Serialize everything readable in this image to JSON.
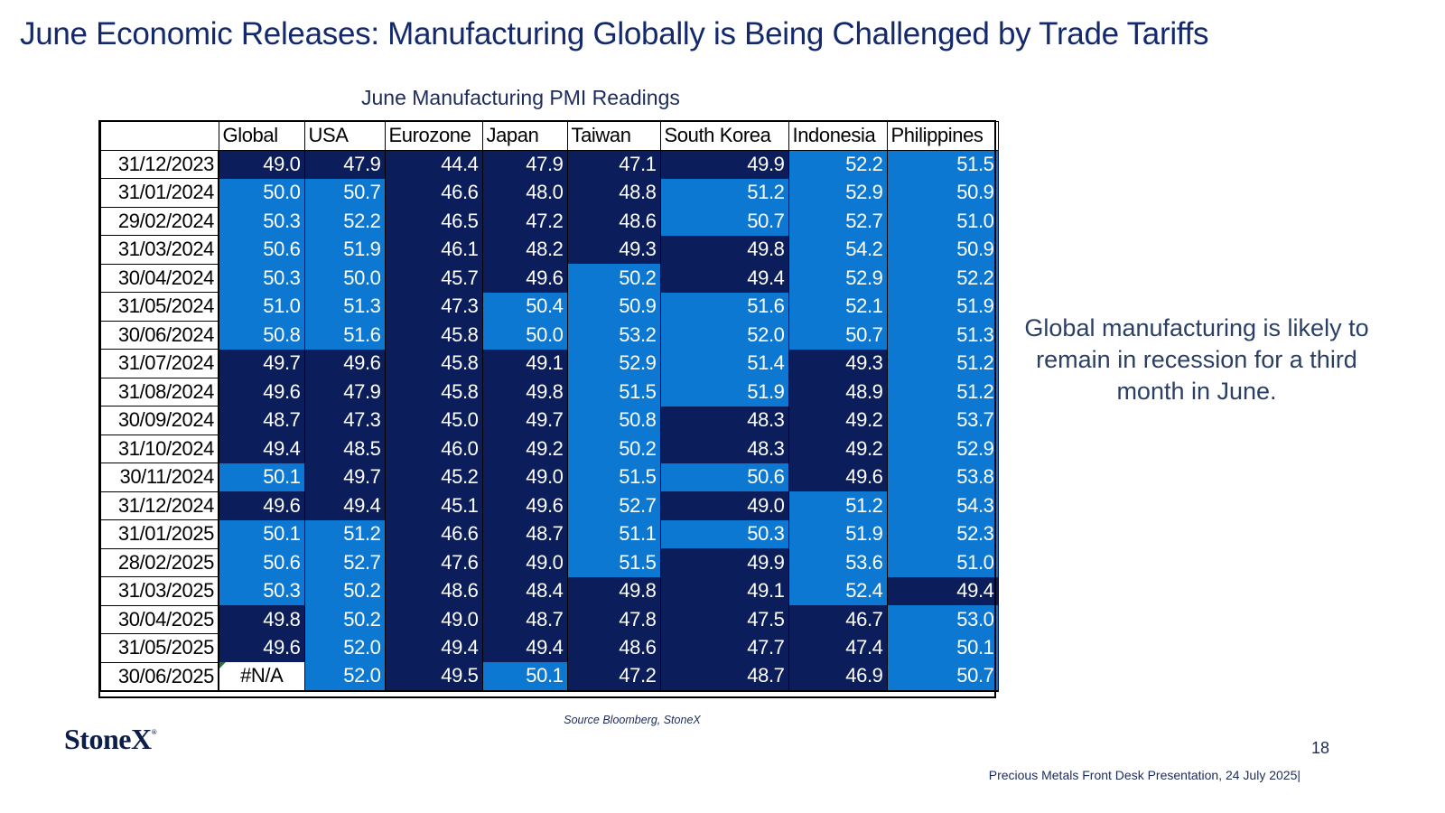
{
  "title": "June Economic Releases: Manufacturing Globally is Being Challenged by Trade Tariffs",
  "table": {
    "title": "June Manufacturing PMI Readings",
    "columns": [
      "Global",
      "USA",
      "Eurozone",
      "Japan",
      "Taiwan",
      "South Korea",
      "Indonesia",
      "Philippines"
    ],
    "threshold": 50.0,
    "rows": [
      {
        "date": "31/12/2023",
        "values": [
          "49.0",
          "47.9",
          "44.4",
          "47.9",
          "47.1",
          "49.9",
          "52.2",
          "51.5"
        ]
      },
      {
        "date": "31/01/2024",
        "values": [
          "50.0",
          "50.7",
          "46.6",
          "48.0",
          "48.8",
          "51.2",
          "52.9",
          "50.9"
        ]
      },
      {
        "date": "29/02/2024",
        "values": [
          "50.3",
          "52.2",
          "46.5",
          "47.2",
          "48.6",
          "50.7",
          "52.7",
          "51.0"
        ]
      },
      {
        "date": "31/03/2024",
        "values": [
          "50.6",
          "51.9",
          "46.1",
          "48.2",
          "49.3",
          "49.8",
          "54.2",
          "50.9"
        ]
      },
      {
        "date": "30/04/2024",
        "values": [
          "50.3",
          "50.0",
          "45.7",
          "49.6",
          "50.2",
          "49.4",
          "52.9",
          "52.2"
        ]
      },
      {
        "date": "31/05/2024",
        "values": [
          "51.0",
          "51.3",
          "47.3",
          "50.4",
          "50.9",
          "51.6",
          "52.1",
          "51.9"
        ]
      },
      {
        "date": "30/06/2024",
        "values": [
          "50.8",
          "51.6",
          "45.8",
          "50.0",
          "53.2",
          "52.0",
          "50.7",
          "51.3"
        ]
      },
      {
        "date": "31/07/2024",
        "values": [
          "49.7",
          "49.6",
          "45.8",
          "49.1",
          "52.9",
          "51.4",
          "49.3",
          "51.2"
        ]
      },
      {
        "date": "31/08/2024",
        "values": [
          "49.6",
          "47.9",
          "45.8",
          "49.8",
          "51.5",
          "51.9",
          "48.9",
          "51.2"
        ]
      },
      {
        "date": "30/09/2024",
        "values": [
          "48.7",
          "47.3",
          "45.0",
          "49.7",
          "50.8",
          "48.3",
          "49.2",
          "53.7"
        ]
      },
      {
        "date": "31/10/2024",
        "values": [
          "49.4",
          "48.5",
          "46.0",
          "49.2",
          "50.2",
          "48.3",
          "49.2",
          "52.9"
        ]
      },
      {
        "date": "30/11/2024",
        "values": [
          "50.1",
          "49.7",
          "45.2",
          "49.0",
          "51.5",
          "50.6",
          "49.6",
          "53.8"
        ]
      },
      {
        "date": "31/12/2024",
        "values": [
          "49.6",
          "49.4",
          "45.1",
          "49.6",
          "52.7",
          "49.0",
          "51.2",
          "54.3"
        ]
      },
      {
        "date": "31/01/2025",
        "values": [
          "50.1",
          "51.2",
          "46.6",
          "48.7",
          "51.1",
          "50.3",
          "51.9",
          "52.3"
        ]
      },
      {
        "date": "28/02/2025",
        "values": [
          "50.6",
          "52.7",
          "47.6",
          "49.0",
          "51.5",
          "49.9",
          "53.6",
          "51.0"
        ]
      },
      {
        "date": "31/03/2025",
        "values": [
          "50.3",
          "50.2",
          "48.6",
          "48.4",
          "49.8",
          "49.1",
          "52.4",
          "49.4"
        ]
      },
      {
        "date": "30/04/2025",
        "values": [
          "49.8",
          "50.2",
          "49.0",
          "48.7",
          "47.8",
          "47.5",
          "46.7",
          "53.0"
        ]
      },
      {
        "date": "31/05/2025",
        "values": [
          "49.6",
          "52.0",
          "49.4",
          "49.4",
          "48.6",
          "47.7",
          "47.4",
          "50.1"
        ]
      },
      {
        "date": "30/06/2025",
        "values": [
          "#N/A",
          "52.0",
          "49.5",
          "50.1",
          "47.2",
          "48.7",
          "46.9",
          "50.7"
        ]
      }
    ]
  },
  "side_note": "Global manufacturing is likely to remain in recession for a third month in June.",
  "source": "Source Bloomberg, StoneX",
  "logo": {
    "text": "StoneX",
    "mark": "®"
  },
  "page_number": "18",
  "footer": "Precious Metals Front Desk Presentation, 24 July 2025|",
  "colors": {
    "title": "#13296b",
    "below_threshold": "#0b1e5b",
    "above_threshold": "#0c78d2"
  }
}
